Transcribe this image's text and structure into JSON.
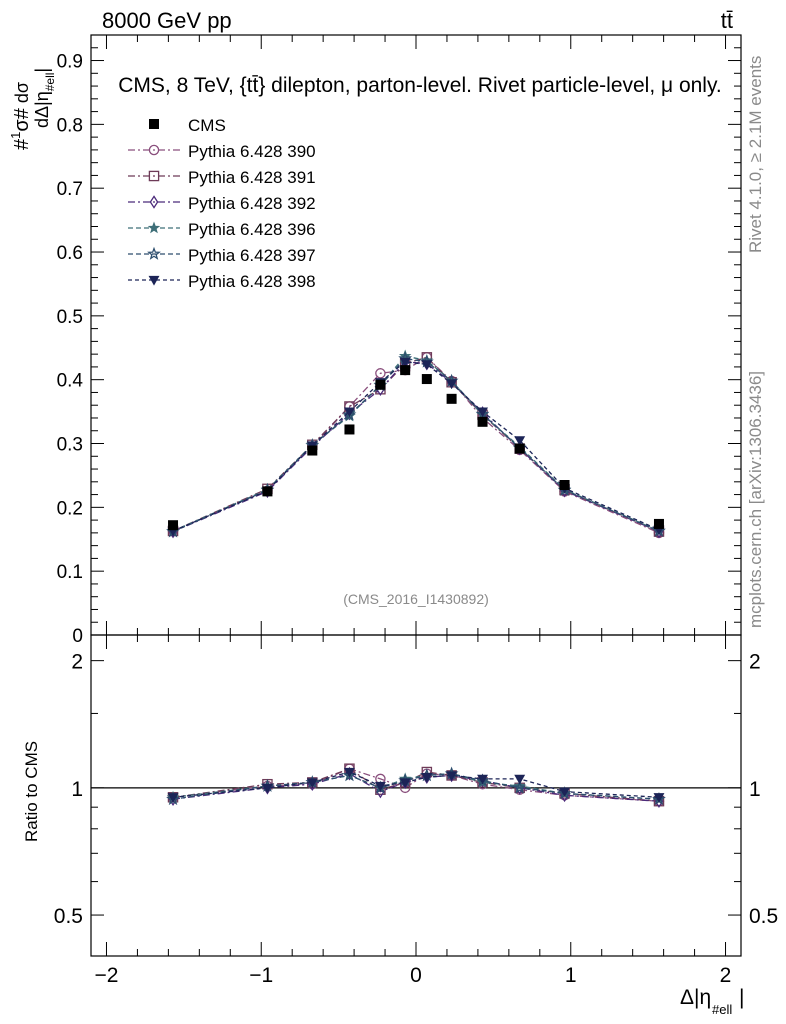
{
  "header": {
    "left": "8000 GeV pp",
    "right": "tt̄",
    "title": "CMS, 8 TeV, {tt̄} dilepton, parton-level. Rivet particle-level, μ only.",
    "analysis_id": "(CMS_2016_I1430892)"
  },
  "side_text": {
    "rivet": "Rivet 4.1.0, ≥ 2.1M events",
    "mcplots": "mcplots.cern.ch [arXiv:1306.3436]"
  },
  "colors": {
    "data": "#000000",
    "s390": "#8a4f7d",
    "s391": "#6e3b58",
    "s392": "#4b2a7a",
    "s396": "#3e6f78",
    "s397": "#2d4e6e",
    "s398": "#1c2457"
  },
  "chart_data": [
    {
      "type": "line",
      "panel": "main",
      "ylabel": "#1/σ# dσ/dΔ|η_#ell|",
      "ylim": [
        0,
        0.94
      ],
      "xlim": [
        -2.1,
        2.1
      ],
      "y_ticks": [
        0,
        0.1,
        0.2,
        0.3,
        0.4,
        0.5,
        0.6,
        0.7,
        0.8,
        0.9
      ],
      "y_tick_labels": [
        "0",
        "0.1",
        "0.2",
        "0.3",
        "0.4",
        "0.5",
        "0.6",
        "0.7",
        "0.8",
        "0.9"
      ],
      "legend_position": "top-left",
      "x": [
        -1.57,
        -0.96,
        -0.67,
        -0.43,
        -0.23,
        -0.07,
        0.07,
        0.23,
        0.43,
        0.67,
        0.96,
        1.57
      ],
      "data": {
        "name": "CMS",
        "values": [
          0.172,
          0.225,
          0.289,
          0.322,
          0.392,
          0.415,
          0.401,
          0.37,
          0.334,
          0.292,
          0.235,
          0.174
        ]
      },
      "series": [
        {
          "name": "Pythia 6.428 390",
          "key": "s390",
          "marker": "circle",
          "values": [
            0.163,
            0.226,
            0.295,
            0.358,
            0.41,
            0.415,
            0.435,
            0.398,
            0.34,
            0.29,
            0.225,
            0.16
          ]
        },
        {
          "name": "Pythia 6.428 391",
          "key": "s391",
          "marker": "square",
          "values": [
            0.163,
            0.229,
            0.298,
            0.358,
            0.385,
            0.425,
            0.435,
            0.396,
            0.345,
            0.292,
            0.227,
            0.162
          ]
        },
        {
          "name": "Pythia 6.428 392",
          "key": "s392",
          "marker": "diamond",
          "values": [
            0.162,
            0.225,
            0.295,
            0.347,
            0.385,
            0.428,
            0.425,
            0.396,
            0.348,
            0.292,
            0.226,
            0.162
          ]
        },
        {
          "name": "Pythia 6.428 396",
          "key": "s396",
          "marker": "star-filled",
          "values": [
            0.163,
            0.228,
            0.298,
            0.343,
            0.392,
            0.437,
            0.43,
            0.398,
            0.345,
            0.295,
            0.228,
            0.163
          ]
        },
        {
          "name": "Pythia 6.428 397",
          "key": "s397",
          "marker": "star-open",
          "values": [
            0.162,
            0.227,
            0.297,
            0.345,
            0.391,
            0.433,
            0.428,
            0.398,
            0.346,
            0.293,
            0.227,
            0.163
          ]
        },
        {
          "name": "Pythia 6.428 398",
          "key": "s398",
          "marker": "triangle-down",
          "values": [
            0.163,
            0.226,
            0.297,
            0.35,
            0.396,
            0.428,
            0.424,
            0.394,
            0.35,
            0.305,
            0.23,
            0.165
          ]
        }
      ]
    },
    {
      "type": "line",
      "panel": "ratio",
      "xlabel": "Δ|η_#ell|",
      "ylabel": "Ratio to CMS",
      "ylim": [
        0.4,
        2.3
      ],
      "xlim": [
        -2.1,
        2.1
      ],
      "x_ticks": [
        -2,
        -1,
        0,
        1,
        2
      ],
      "x_tick_labels": [
        "−2",
        "−1",
        "0",
        "1",
        "2"
      ],
      "y_ticks": [
        0.5,
        1,
        2
      ],
      "y_tick_labels": [
        "0.5",
        "1",
        "2"
      ],
      "x": [
        -1.57,
        -0.96,
        -0.67,
        -0.43,
        -0.23,
        -0.07,
        0.07,
        0.23,
        0.43,
        0.67,
        0.96,
        1.57
      ],
      "reference": 1,
      "series": [
        {
          "key": "s390",
          "marker": "circle",
          "values": [
            0.95,
            1.01,
            1.02,
            1.11,
            1.05,
            1.0,
            1.08,
            1.07,
            1.02,
            0.99,
            0.96,
            0.93
          ]
        },
        {
          "key": "s391",
          "marker": "square",
          "values": [
            0.95,
            1.02,
            1.03,
            1.11,
            0.99,
            1.03,
            1.09,
            1.07,
            1.03,
            1.0,
            0.97,
            0.93
          ]
        },
        {
          "key": "s392",
          "marker": "diamond",
          "values": [
            0.94,
            1.0,
            1.02,
            1.08,
            0.98,
            1.03,
            1.06,
            1.07,
            1.04,
            1.0,
            0.96,
            0.93
          ]
        },
        {
          "key": "s396",
          "marker": "star-filled",
          "values": [
            0.95,
            1.01,
            1.03,
            1.07,
            1.0,
            1.05,
            1.07,
            1.08,
            1.03,
            1.01,
            0.97,
            0.94
          ]
        },
        {
          "key": "s397",
          "marker": "star-open",
          "values": [
            0.94,
            1.01,
            1.03,
            1.07,
            1.0,
            1.04,
            1.07,
            1.08,
            1.04,
            1.0,
            0.97,
            0.94
          ]
        },
        {
          "key": "s398",
          "marker": "triangle-down",
          "values": [
            0.95,
            1.0,
            1.03,
            1.09,
            1.01,
            1.03,
            1.06,
            1.07,
            1.05,
            1.05,
            0.98,
            0.95
          ]
        }
      ]
    }
  ]
}
